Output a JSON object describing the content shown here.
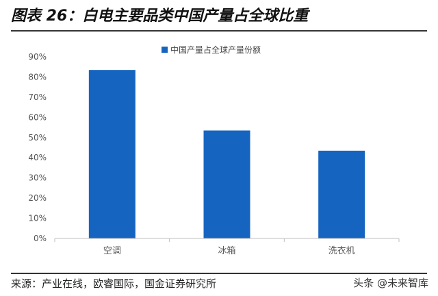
{
  "figure_title": "图表 26：白电主要品类中国产量占全球比重",
  "source_note": "来源：产业在线，欧睿国际，国金证券研究所",
  "watermark": "头条 @未来智库",
  "colors": {
    "bar": "#1565C0",
    "axis": "#bfbfbf",
    "text": "#555555"
  },
  "chart_data": {
    "type": "bar",
    "categories": [
      "空调",
      "冰箱",
      "洗衣机"
    ],
    "series": [
      {
        "name": "中国产量占全球产量份额",
        "values": [
          83.5,
          53.5,
          43.5
        ]
      }
    ],
    "ylim": [
      0,
      90
    ],
    "yticks": [
      "0%",
      "10%",
      "20%",
      "30%",
      "40%",
      "50%",
      "60%",
      "70%",
      "80%",
      "90%"
    ],
    "y_unit": "%",
    "legend": "top-center",
    "grid": false
  }
}
